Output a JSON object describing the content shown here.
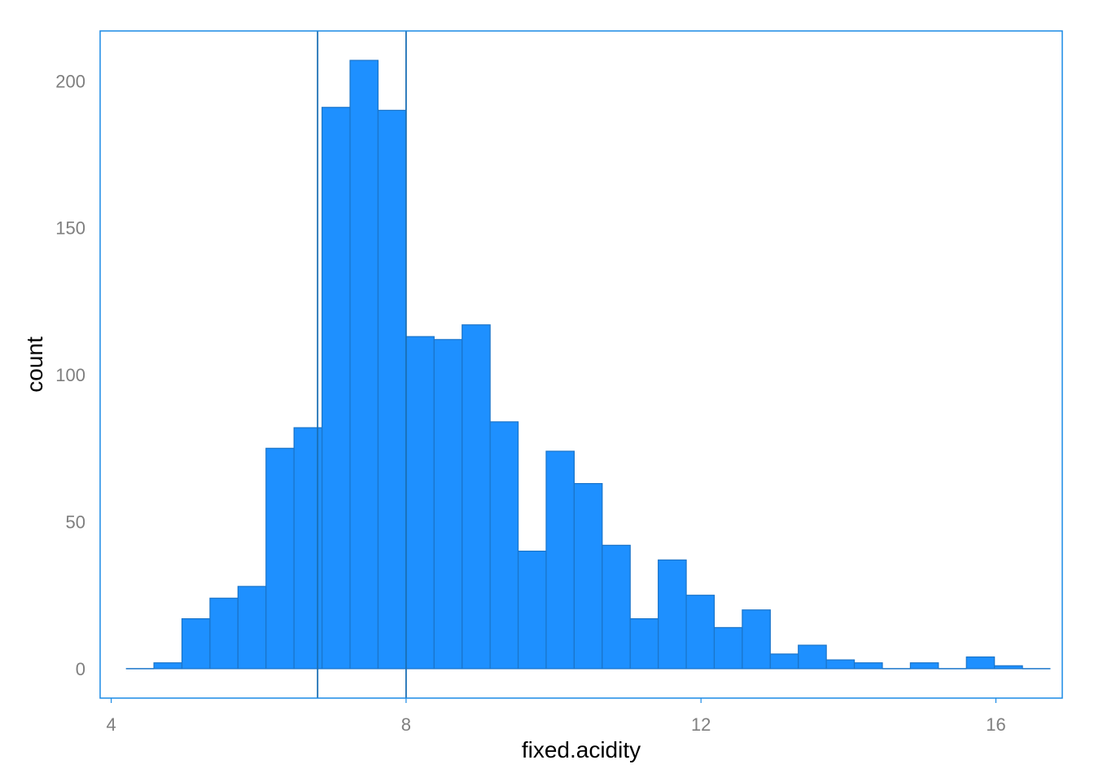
{
  "chart_data": {
    "type": "bar",
    "xlabel": "fixed.acidity",
    "ylabel": "count",
    "xlim": [
      3.85,
      16.9
    ],
    "ylim": [
      -10,
      217
    ],
    "x_ticks": [
      4,
      8,
      12,
      16
    ],
    "y_ticks": [
      0,
      50,
      100,
      150,
      200
    ],
    "bin_width": 0.38,
    "bins": [
      {
        "x0": 4.2,
        "x1": 4.58,
        "count": 0
      },
      {
        "x0": 4.58,
        "x1": 4.96,
        "count": 2
      },
      {
        "x0": 4.96,
        "x1": 5.34,
        "count": 17
      },
      {
        "x0": 5.34,
        "x1": 5.72,
        "count": 24
      },
      {
        "x0": 5.72,
        "x1": 6.1,
        "count": 28
      },
      {
        "x0": 6.1,
        "x1": 6.48,
        "count": 75
      },
      {
        "x0": 6.48,
        "x1": 6.86,
        "count": 82
      },
      {
        "x0": 6.86,
        "x1": 7.24,
        "count": 191
      },
      {
        "x0": 7.24,
        "x1": 7.62,
        "count": 207
      },
      {
        "x0": 7.62,
        "x1": 8.0,
        "count": 190
      },
      {
        "x0": 8.0,
        "x1": 8.38,
        "count": 113
      },
      {
        "x0": 8.38,
        "x1": 8.76,
        "count": 112
      },
      {
        "x0": 8.76,
        "x1": 9.14,
        "count": 117
      },
      {
        "x0": 9.14,
        "x1": 9.52,
        "count": 84
      },
      {
        "x0": 9.52,
        "x1": 9.9,
        "count": 40
      },
      {
        "x0": 9.9,
        "x1": 10.28,
        "count": 74
      },
      {
        "x0": 10.28,
        "x1": 10.66,
        "count": 63
      },
      {
        "x0": 10.66,
        "x1": 11.04,
        "count": 42
      },
      {
        "x0": 11.04,
        "x1": 11.42,
        "count": 17
      },
      {
        "x0": 11.42,
        "x1": 11.8,
        "count": 37
      },
      {
        "x0": 11.8,
        "x1": 12.18,
        "count": 25
      },
      {
        "x0": 12.18,
        "x1": 12.56,
        "count": 14
      },
      {
        "x0": 12.56,
        "x1": 12.94,
        "count": 20
      },
      {
        "x0": 12.94,
        "x1": 13.32,
        "count": 5
      },
      {
        "x0": 13.32,
        "x1": 13.7,
        "count": 8
      },
      {
        "x0": 13.7,
        "x1": 14.08,
        "count": 3
      },
      {
        "x0": 14.08,
        "x1": 14.46,
        "count": 2
      },
      {
        "x0": 14.46,
        "x1": 14.84,
        "count": 0
      },
      {
        "x0": 14.84,
        "x1": 15.22,
        "count": 2
      },
      {
        "x0": 15.22,
        "x1": 15.6,
        "count": 0
      },
      {
        "x0": 15.6,
        "x1": 15.98,
        "count": 4
      },
      {
        "x0": 15.98,
        "x1": 16.36,
        "count": 1
      },
      {
        "x0": 16.36,
        "x1": 16.74,
        "count": 0
      }
    ],
    "vlines": [
      6.8,
      8.0
    ],
    "grid": false,
    "legend": "none",
    "colors": {
      "bar_fill": "#1e90ff",
      "bar_stroke": "#1a74c9",
      "panel_border": "#1a8ae6",
      "vline": "#1a6fb5",
      "baseline": "#1a74c9",
      "tick_label": "#7f7f7f",
      "axis_title": "#000000"
    }
  }
}
